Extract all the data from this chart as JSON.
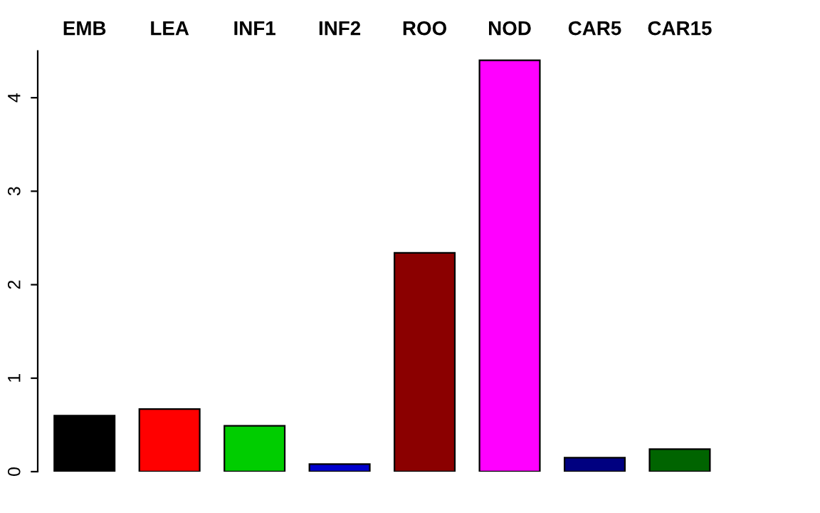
{
  "chart_data": {
    "type": "bar",
    "categories": [
      "EMB",
      "LEA",
      "INF1",
      "INF2",
      "ROO",
      "NOD",
      "CAR5",
      "CAR15"
    ],
    "values": [
      0.6,
      0.67,
      0.49,
      0.08,
      2.34,
      4.4,
      0.15,
      0.24
    ],
    "colors": [
      "#000000",
      "#ff0000",
      "#00cd00",
      "#0000cd",
      "#8b0000",
      "#ff00ff",
      "#000080",
      "#006400"
    ],
    "ylim": [
      0,
      4.5
    ],
    "yticks": [
      0,
      1,
      2,
      3,
      4
    ],
    "grid": false,
    "legend": false
  }
}
